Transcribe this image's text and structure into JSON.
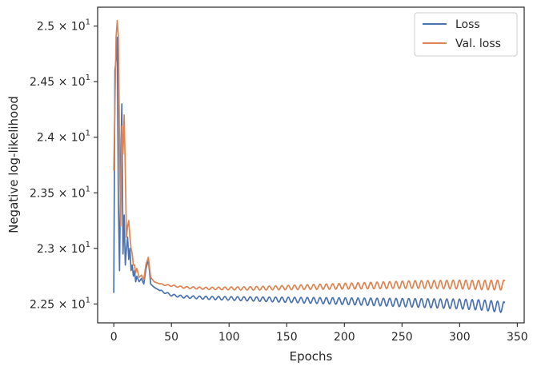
{
  "chart_data": {
    "type": "line",
    "xlabel": "Epochs",
    "ylabel": "Negative log-likelihood",
    "xlim": [
      -14,
      356
    ],
    "ylim": [
      22.33,
      25.17
    ],
    "xticks": [
      0,
      50,
      100,
      150,
      200,
      250,
      300,
      350
    ],
    "yticks": [
      {
        "value": 22.5,
        "mantissa": "2.25"
      },
      {
        "value": 23.0,
        "mantissa": "2.3"
      },
      {
        "value": 23.5,
        "mantissa": "2.35"
      },
      {
        "value": 24.0,
        "mantissa": "2.4"
      },
      {
        "value": 24.5,
        "mantissa": "2.45"
      },
      {
        "value": 25.0,
        "mantissa": "2.5"
      }
    ],
    "tick_suffix": "× 10",
    "tick_exponent": "1",
    "grid": false,
    "legend_position": "top-right",
    "series": [
      {
        "name": "Loss",
        "color": "#4c72b0",
        "x": [
          0,
          1,
          2,
          3,
          4,
          5,
          6,
          7,
          8,
          9,
          10,
          11,
          12,
          13,
          14,
          15,
          16,
          17,
          18,
          19,
          20,
          22,
          24,
          26,
          28,
          30,
          32,
          35,
          40,
          45,
          50,
          60,
          70,
          80,
          100,
          120,
          140,
          160,
          180,
          200,
          220,
          240,
          260,
          280,
          300,
          320,
          339
        ],
        "y": [
          22.6,
          24.6,
          24.7,
          24.9,
          23.4,
          22.8,
          23.8,
          24.3,
          22.95,
          23.3,
          22.85,
          23.0,
          23.1,
          22.9,
          23.0,
          22.8,
          22.85,
          22.75,
          22.8,
          22.7,
          22.75,
          22.7,
          22.73,
          22.68,
          22.82,
          22.9,
          22.68,
          22.65,
          22.62,
          22.6,
          22.58,
          22.565,
          22.56,
          22.555,
          22.55,
          22.545,
          22.54,
          22.535,
          22.53,
          22.525,
          22.52,
          22.515,
          22.51,
          22.505,
          22.5,
          22.49,
          22.47
        ],
        "oscillation": {
          "start": 40,
          "period": 5.5,
          "amplitude": [
            0.008,
            0.05
          ]
        }
      },
      {
        "name": "Val. loss",
        "color": "#dd8452",
        "x": [
          0,
          1,
          2,
          3,
          4,
          5,
          6,
          7,
          8,
          9,
          10,
          11,
          12,
          13,
          14,
          15,
          16,
          17,
          18,
          19,
          20,
          22,
          24,
          26,
          28,
          30,
          32,
          35,
          40,
          45,
          50,
          60,
          70,
          80,
          100,
          120,
          140,
          160,
          180,
          200,
          220,
          240,
          260,
          280,
          300,
          320,
          339
        ],
        "y": [
          23.7,
          24.3,
          24.9,
          25.05,
          24.9,
          23.9,
          23.2,
          24.1,
          23.85,
          24.2,
          23.7,
          23.1,
          23.2,
          23.25,
          23.1,
          23.0,
          22.95,
          22.85,
          22.85,
          22.78,
          22.82,
          22.74,
          22.76,
          22.72,
          22.86,
          22.92,
          22.74,
          22.7,
          22.68,
          22.67,
          22.665,
          22.65,
          22.645,
          22.64,
          22.64,
          22.64,
          22.645,
          22.65,
          22.655,
          22.66,
          22.665,
          22.67,
          22.675,
          22.675,
          22.675,
          22.67,
          22.67
        ],
        "oscillation": {
          "start": 40,
          "period": 5.5,
          "amplitude": [
            0.005,
            0.045
          ]
        }
      }
    ]
  }
}
